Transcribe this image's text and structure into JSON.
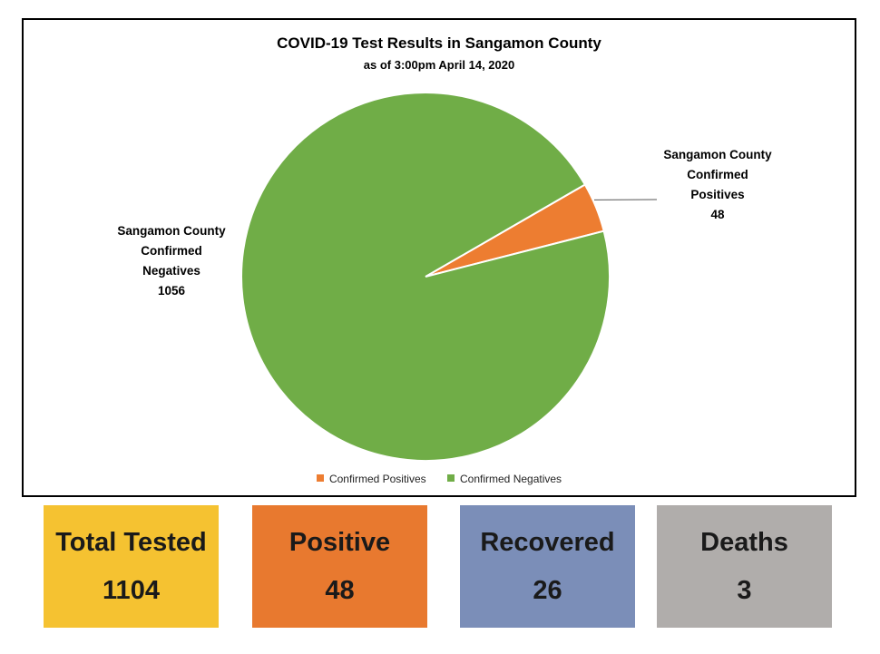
{
  "chart_data": {
    "type": "pie",
    "title": "COVID-19 Test Results in Sangamon County",
    "subtitle": "as of 3:00pm April 14, 2020",
    "slices": [
      {
        "name": "Confirmed Positives",
        "label_lines": [
          "Sangamon County",
          "Confirmed",
          "Positives"
        ],
        "value": 48,
        "color": "#ed7d31"
      },
      {
        "name": "Confirmed Negatives",
        "label_lines": [
          "Sangamon County",
          "Confirmed",
          "Negatives"
        ],
        "value": 1056,
        "color": "#70ad47"
      }
    ],
    "legend": {
      "position": "bottom",
      "items": [
        "Confirmed Positives",
        "Confirmed Negatives"
      ]
    }
  },
  "stats": [
    {
      "label": "Total Tested",
      "value": "1104",
      "color": "#f5c231"
    },
    {
      "label": "Positive",
      "value": "48",
      "color": "#e8792f"
    },
    {
      "label": "Recovered",
      "value": "26",
      "color": "#7b8eb8"
    },
    {
      "label": "Deaths",
      "value": "3",
      "color": "#b0adab"
    }
  ]
}
